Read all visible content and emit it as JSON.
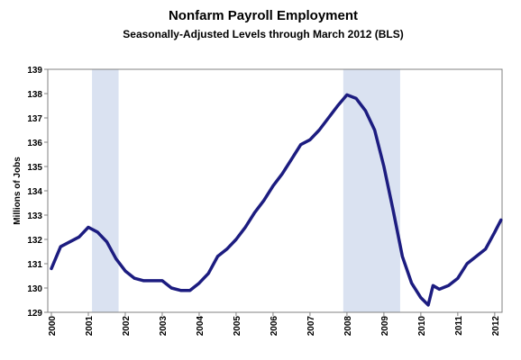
{
  "chart_data": {
    "type": "line",
    "title": "Nonfarm Payroll Employment",
    "subtitle": "Seasonally-Adjusted Levels through March 2012 (BLS)",
    "y_label": "Millions of Jobs",
    "x": [
      2000.0,
      2000.25,
      2000.5,
      2000.75,
      2001.0,
      2001.25,
      2001.5,
      2001.75,
      2002.0,
      2002.25,
      2002.5,
      2002.75,
      2003.0,
      2003.25,
      2003.5,
      2003.75,
      2004.0,
      2004.25,
      2004.5,
      2004.75,
      2005.0,
      2005.25,
      2005.5,
      2005.75,
      2006.0,
      2006.25,
      2006.5,
      2006.75,
      2007.0,
      2007.25,
      2007.5,
      2007.75,
      2008.0,
      2008.25,
      2008.5,
      2008.75,
      2009.0,
      2009.25,
      2009.5,
      2009.75,
      2010.0,
      2010.2,
      2010.33,
      2010.5,
      2010.75,
      2011.0,
      2011.25,
      2011.5,
      2011.75,
      2012.0,
      2012.17
    ],
    "series": [
      {
        "name": "Nonfarm Payroll Employment",
        "color": "#1c1c80",
        "values": [
          130.8,
          131.7,
          131.9,
          132.1,
          132.5,
          132.3,
          131.9,
          131.2,
          130.7,
          130.4,
          130.3,
          130.3,
          130.3,
          130.0,
          129.9,
          129.9,
          130.2,
          130.6,
          131.3,
          131.6,
          132.0,
          132.5,
          133.1,
          133.6,
          134.2,
          134.7,
          135.3,
          135.9,
          136.1,
          136.5,
          137.0,
          137.5,
          137.95,
          137.8,
          137.3,
          136.5,
          135.0,
          133.2,
          131.3,
          130.2,
          129.6,
          129.3,
          130.1,
          129.95,
          130.1,
          130.4,
          131.0,
          131.3,
          131.6,
          132.3,
          132.8
        ]
      }
    ],
    "shaded_ranges": [
      [
        2001.1,
        2001.82
      ],
      [
        2007.9,
        2009.44
      ]
    ],
    "shade_color": "#dae2f1",
    "xlim": [
      2000,
      2012.15
    ],
    "xticks": [
      2000,
      2001,
      2002,
      2003,
      2004,
      2005,
      2006,
      2007,
      2008,
      2009,
      2010,
      2011,
      2012
    ],
    "ylim": [
      129,
      139
    ],
    "yticks": [
      129,
      130,
      131,
      132,
      133,
      134,
      135,
      136,
      137,
      138,
      139
    ],
    "grid": false
  }
}
